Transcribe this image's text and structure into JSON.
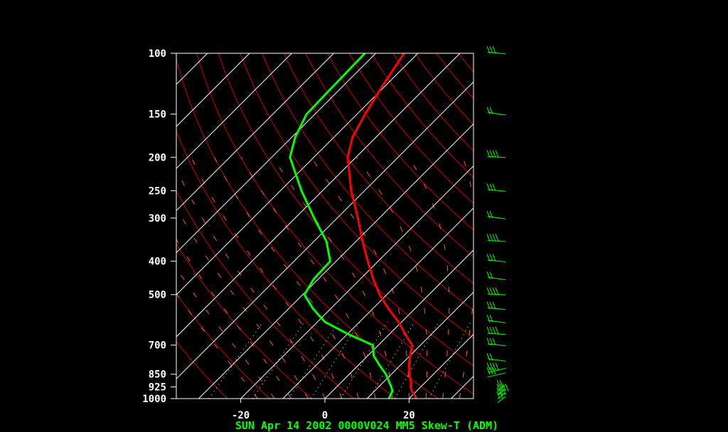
{
  "chart_data": {
    "type": "line",
    "title": "SUN Apr 14 2002 0000V024 MM5 Skew-T (ADM)",
    "y_axis": {
      "scale": "log-pressure",
      "range": [
        1000,
        100
      ],
      "tick_labels": [
        "100",
        "150",
        "200",
        "250",
        "300",
        "400",
        "500",
        "700",
        "850",
        "925",
        "1000"
      ]
    },
    "x_axis": {
      "tick_labels": [
        "-20",
        "0",
        "20"
      ]
    },
    "series": [
      {
        "color": "#ff0000",
        "pressure": [
          1000,
          975,
          950,
          925,
          900,
          850,
          800,
          750,
          700,
          650,
          600,
          550,
          500,
          450,
          400,
          350,
          300,
          250,
          200,
          175,
          150,
          125,
          100
        ],
        "values": [
          21.7,
          20.4,
          18.8,
          17.6,
          16.7,
          14.3,
          12.0,
          10.0,
          8.0,
          3.7,
          -0.7,
          -6.2,
          -11.7,
          -17.0,
          -22.5,
          -28.5,
          -35.1,
          -43.2,
          -52.0,
          -55.6,
          -58.1,
          -60.6,
          -63.3
        ]
      },
      {
        "color": "#00ff00",
        "pressure": [
          1000,
          950,
          925,
          900,
          850,
          800,
          750,
          700,
          650,
          600,
          550,
          500,
          450,
          400,
          350,
          300,
          250,
          200,
          175,
          150,
          125,
          100
        ],
        "values": [
          15.2,
          14.2,
          13.0,
          11.6,
          8.7,
          5.0,
          1.3,
          -1.3,
          -9.9,
          -18.2,
          -24.1,
          -29.6,
          -31.1,
          -31.4,
          -37.1,
          -45.5,
          -55.0,
          -65.7,
          -69.2,
          -72.0,
          -72.3,
          -72.6
        ]
      }
    ],
    "wind_barbs": {
      "color": "#00ff00",
      "levels": [
        1000,
        975,
        950,
        925,
        850,
        825,
        775,
        700,
        650,
        600,
        550,
        500,
        450,
        400,
        350,
        300,
        250,
        200,
        150,
        100
      ]
    },
    "background": {
      "isotherm_color": "#ffffff",
      "dry_adiabat_color": "#cc0000",
      "moist_adiabat_color": "#ff5555",
      "mixing_ratio_color": "#ffffff"
    }
  }
}
